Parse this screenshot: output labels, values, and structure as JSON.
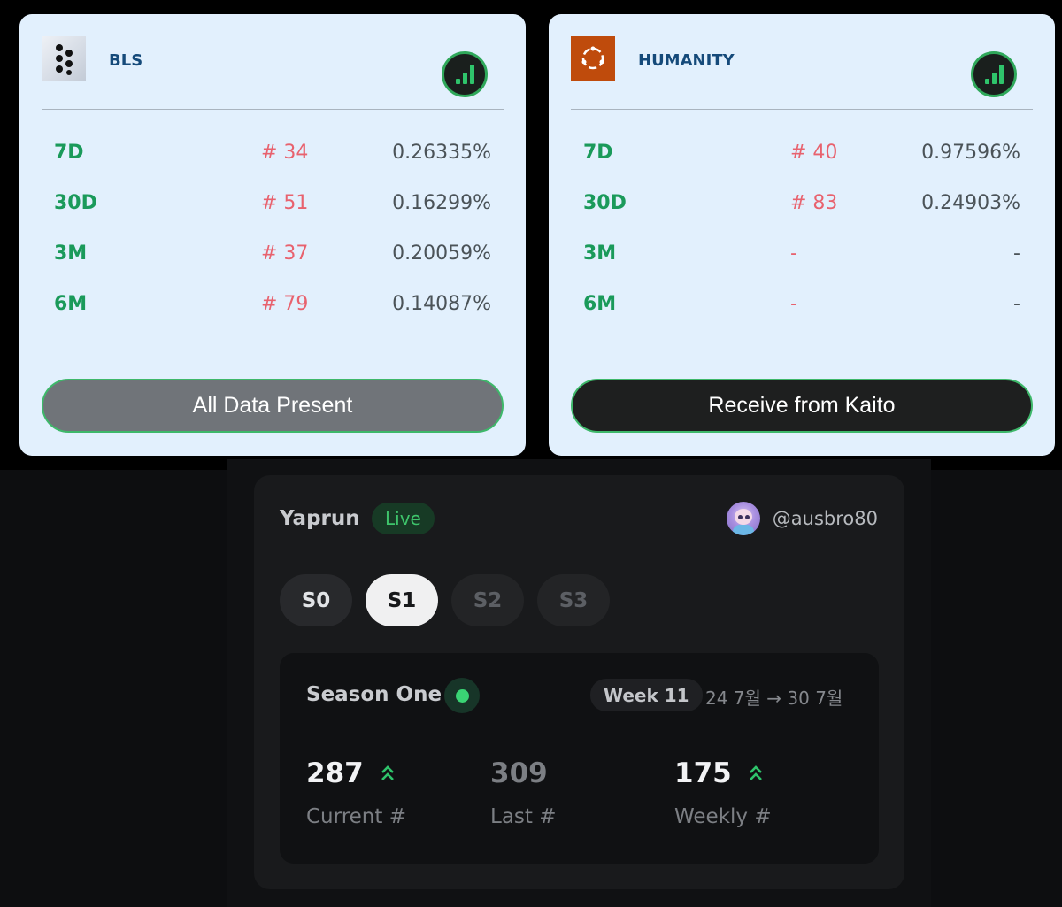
{
  "cards": [
    {
      "name": "BLS",
      "logo": "bls-dots-logo",
      "stats": [
        {
          "period": "7D",
          "rank": "# 34",
          "pct": "0.26335%"
        },
        {
          "period": "30D",
          "rank": "# 51",
          "pct": "0.16299%"
        },
        {
          "period": "3M",
          "rank": "# 37",
          "pct": "0.20059%"
        },
        {
          "period": "6M",
          "rank": "# 79",
          "pct": "0.14087%"
        }
      ],
      "button_label": "All Data Present"
    },
    {
      "name": "HUMANITY",
      "logo": "humanity-ring-logo",
      "stats": [
        {
          "period": "7D",
          "rank": "# 40",
          "pct": "0.97596%"
        },
        {
          "period": "30D",
          "rank": "# 83",
          "pct": "0.24903%"
        },
        {
          "period": "3M",
          "rank": "-",
          "pct": "-"
        },
        {
          "period": "6M",
          "rank": "-",
          "pct": "-"
        }
      ],
      "button_label": "Receive from Kaito"
    }
  ],
  "yaprun": {
    "title": "Yaprun",
    "status": "Live",
    "user_handle": "@ausbro80",
    "seasons": [
      "S0",
      "S1",
      "S2",
      "S3"
    ],
    "selected_season": "S1",
    "season_card": {
      "name": "Season One",
      "week": "Week 11",
      "date_range": "24 7월 → 30 7월",
      "stats": [
        {
          "value": "287",
          "label": "Current #",
          "trend": "up"
        },
        {
          "value": "309",
          "label": "Last #",
          "trend": "none"
        },
        {
          "value": "175",
          "label": "Weekly #",
          "trend": "up"
        }
      ]
    }
  },
  "colors": {
    "card_bg": "#e2f0fd",
    "period_green": "#1a9a5a",
    "rank_red": "#e8626e",
    "live_green": "#3ec46b"
  }
}
